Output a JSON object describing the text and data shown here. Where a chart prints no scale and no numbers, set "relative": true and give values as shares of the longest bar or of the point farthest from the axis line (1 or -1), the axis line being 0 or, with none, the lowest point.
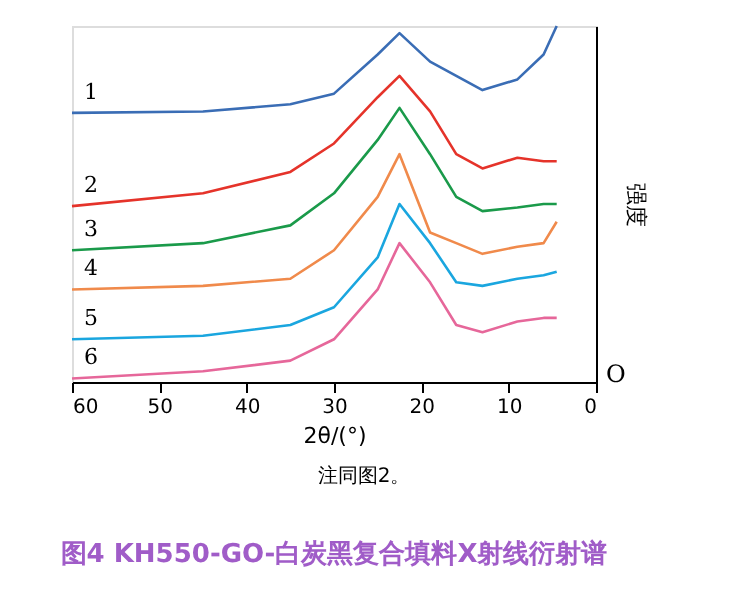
{
  "chart_data": {
    "type": "line",
    "title": "图4 KH550-GO-白炭黑复合填料X射线衍射谱",
    "xlabel": "2θ/(°)",
    "ylabel": "强度",
    "annotations": [
      "O",
      "注同图2。"
    ],
    "relative": true,
    "xlim": [
      60,
      0
    ],
    "xticks": [
      60,
      50,
      40,
      30,
      20,
      10,
      0
    ],
    "grid": false,
    "legend": false,
    "marker": "none",
    "line_style": "solid",
    "x": [
      60,
      45,
      35,
      30,
      25,
      22.5,
      19,
      16,
      13,
      9,
      6,
      4.5
    ],
    "series": [
      {
        "name": "1",
        "color": "#3a6db5",
        "values": [
          0.756,
          0.76,
          0.78,
          0.81,
          0.92,
          0.98,
          0.9,
          0.86,
          0.82,
          0.85,
          0.92,
          1.0
        ]
      },
      {
        "name": "2",
        "color": "#e5332a",
        "values": [
          0.494,
          0.53,
          0.59,
          0.67,
          0.8,
          0.86,
          0.76,
          0.64,
          0.6,
          0.63,
          0.62,
          0.62
        ]
      },
      {
        "name": "3",
        "color": "#1a9a4a",
        "values": [
          0.37,
          0.39,
          0.44,
          0.53,
          0.68,
          0.77,
          0.64,
          0.52,
          0.48,
          0.49,
          0.5,
          0.5
        ]
      },
      {
        "name": "4",
        "color": "#f08a4b",
        "values": [
          0.26,
          0.27,
          0.29,
          0.37,
          0.52,
          0.64,
          0.42,
          0.39,
          0.36,
          0.38,
          0.39,
          0.45
        ]
      },
      {
        "name": "5",
        "color": "#1aa6df",
        "values": [
          0.12,
          0.13,
          0.16,
          0.21,
          0.35,
          0.5,
          0.39,
          0.28,
          0.27,
          0.29,
          0.3,
          0.31
        ]
      },
      {
        "name": "6",
        "color": "#e6679a",
        "values": [
          0.01,
          0.03,
          0.06,
          0.12,
          0.26,
          0.39,
          0.28,
          0.16,
          0.14,
          0.17,
          0.18,
          0.18
        ]
      }
    ]
  }
}
